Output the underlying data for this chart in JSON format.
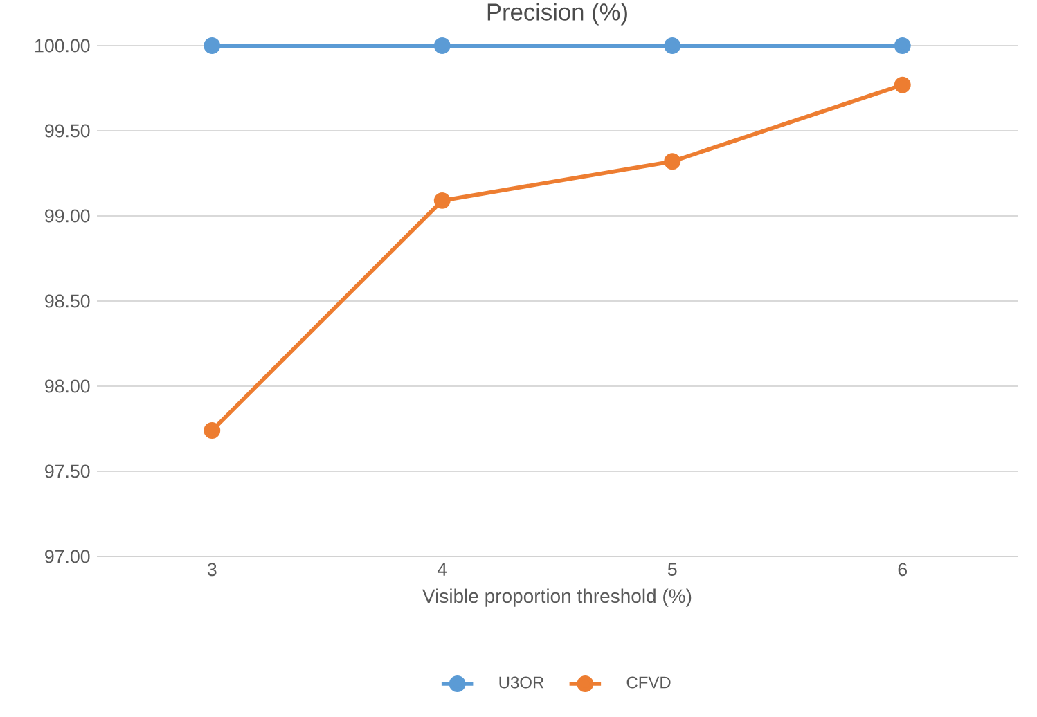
{
  "chart_data": {
    "type": "line",
    "title": "Precision (%)",
    "xlabel": "Visible proportion threshold (%)",
    "categories": [
      "3",
      "4",
      "5",
      "6"
    ],
    "series": [
      {
        "name": "U3OR",
        "color": "#5b9bd5",
        "values": [
          100.0,
          100.0,
          100.0,
          100.0
        ]
      },
      {
        "name": "CFVD",
        "color": "#ed7d31",
        "values": [
          97.74,
          99.09,
          99.32,
          99.77
        ]
      }
    ],
    "ylim": [
      97.0,
      100.0
    ],
    "yticks": [
      {
        "value": 97.0,
        "label": "97.00"
      },
      {
        "value": 97.5,
        "label": "97.50"
      },
      {
        "value": 98.0,
        "label": "98.00"
      },
      {
        "value": 98.5,
        "label": "98.50"
      },
      {
        "value": 99.0,
        "label": "99.00"
      },
      {
        "value": 99.5,
        "label": "99.50"
      },
      {
        "value": 100.0,
        "label": "100.00"
      }
    ],
    "grid": "y",
    "legend": "bottom",
    "marker": "circle",
    "line_style": "solid"
  }
}
